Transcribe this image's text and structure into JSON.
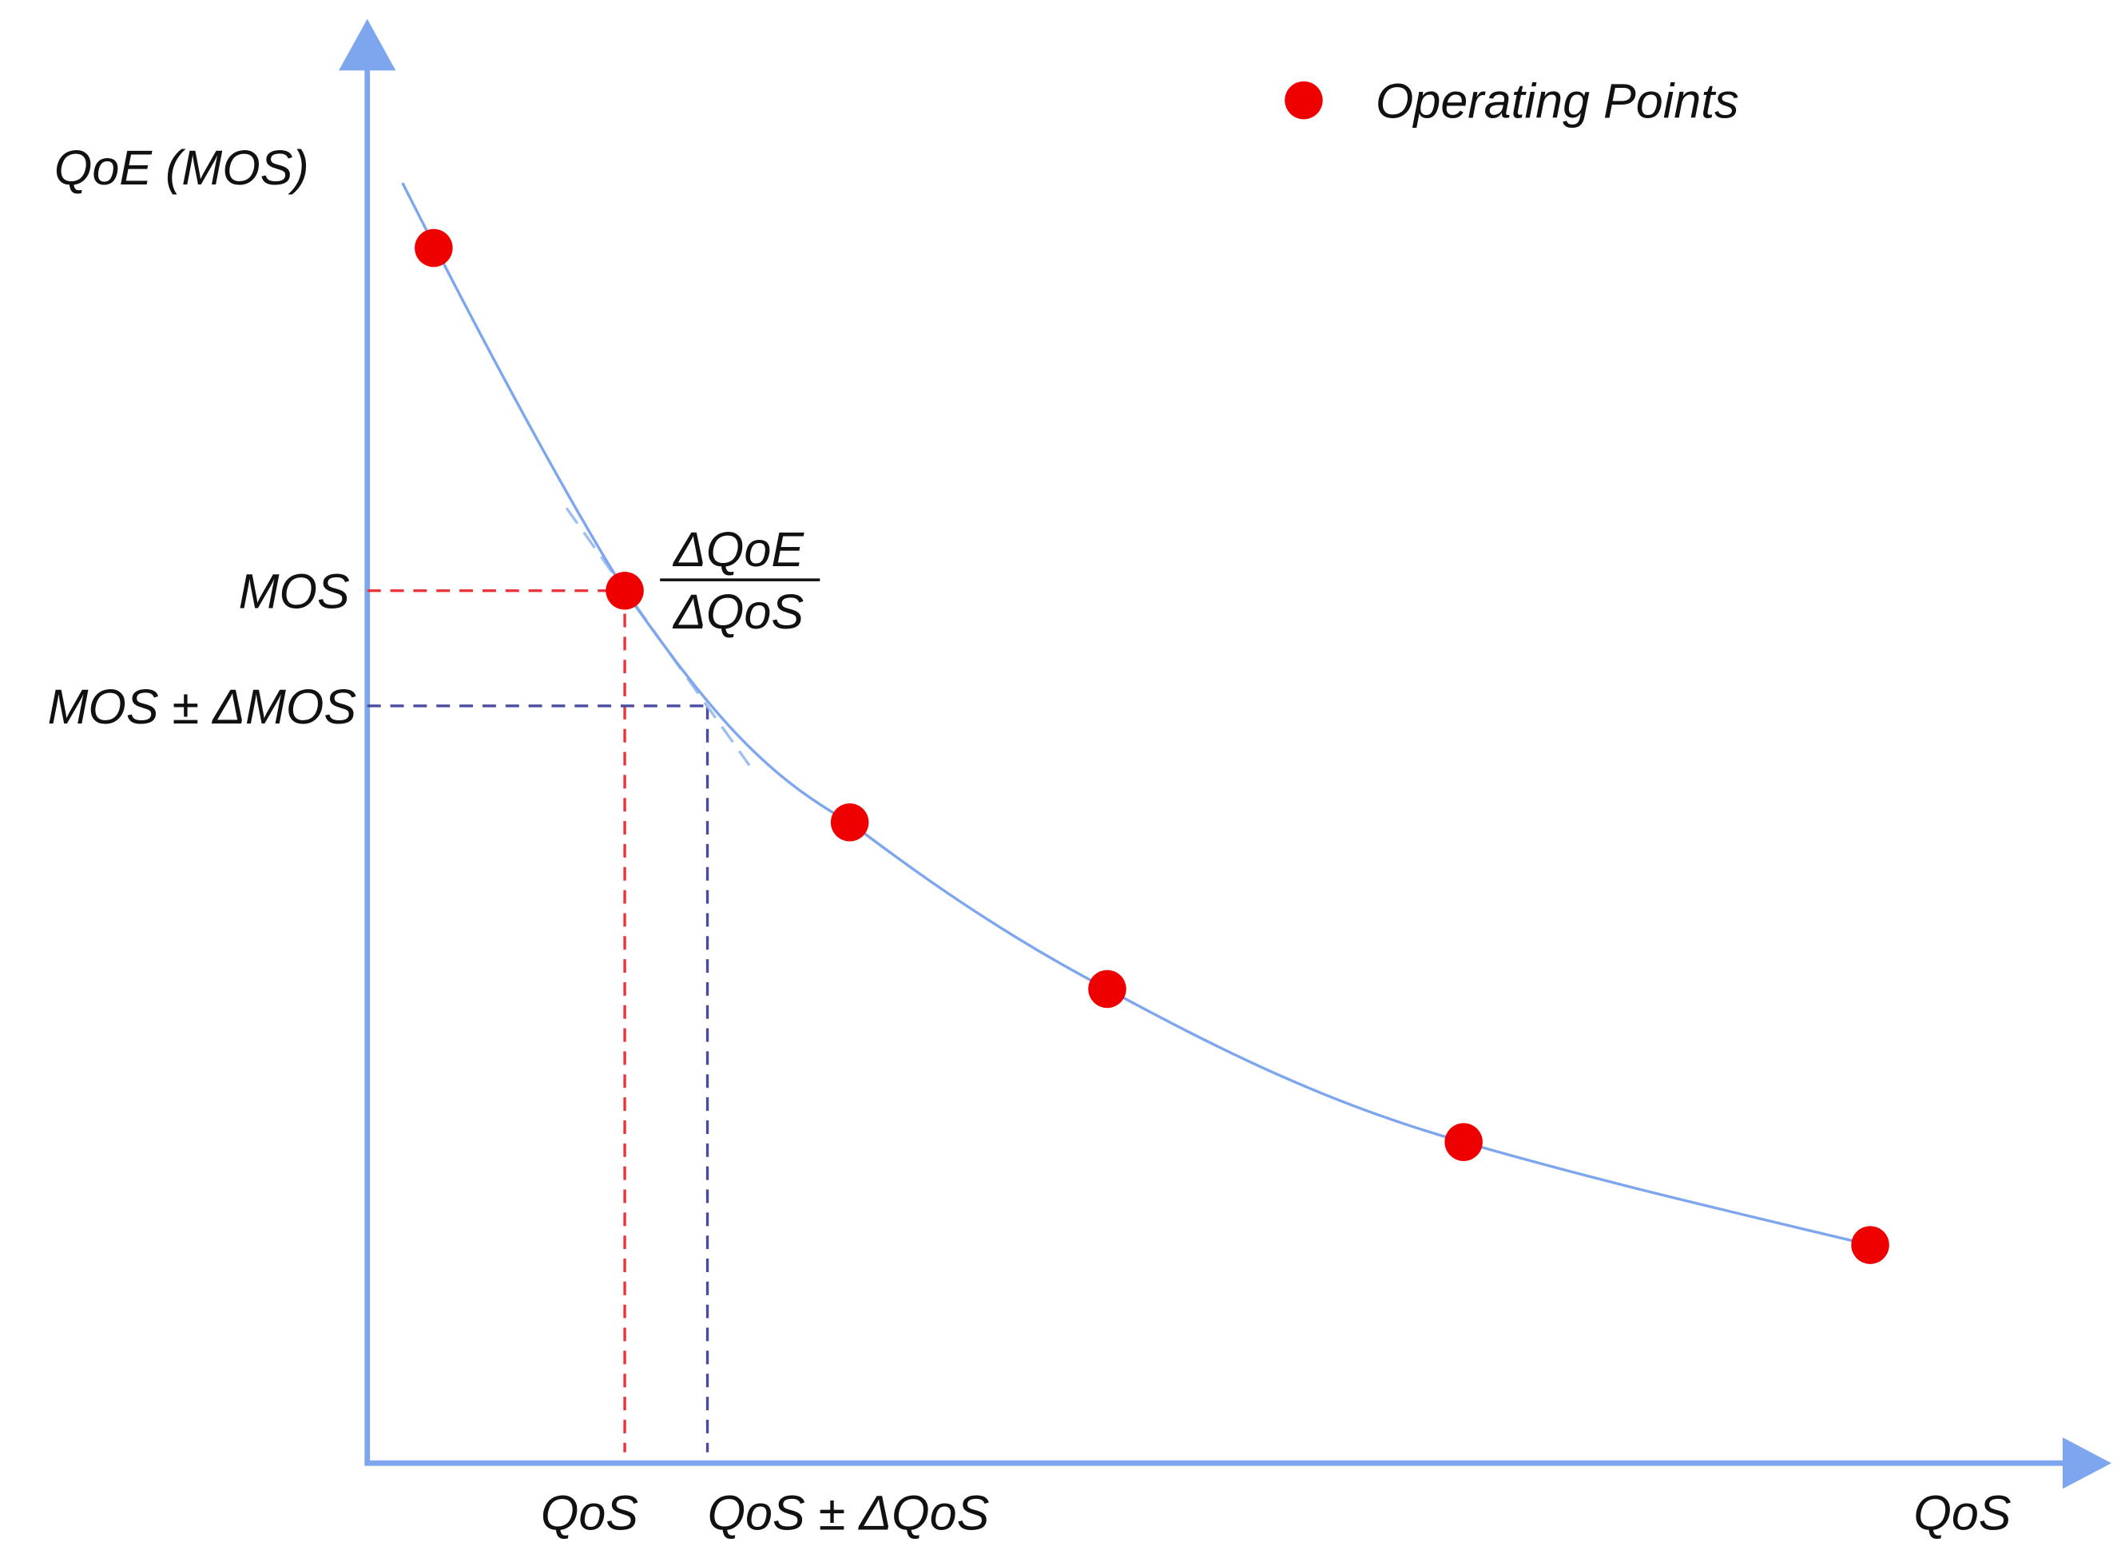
{
  "y_axis": {
    "label": "QoE (MOS)"
  },
  "x_axis": {
    "label": "QoS"
  },
  "legend": {
    "label": "Operating Points"
  },
  "annotations": {
    "mos": "MOS",
    "mos_delta": "MOS ± ΔMOS",
    "qos": "QoS",
    "qos_delta": "QoS ± ΔQoS",
    "slope": {
      "numerator": "ΔQoE",
      "denominator": "ΔQoS"
    }
  }
}
